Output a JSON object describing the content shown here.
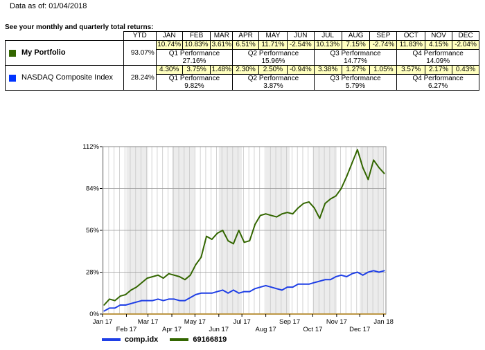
{
  "header": {
    "as_of": "Data as of: 01/04/2018",
    "intro": "See your monthly and quarterly total returns:"
  },
  "table": {
    "headers": [
      "YTD",
      "JAN",
      "FEB",
      "MAR",
      "APR",
      "MAY",
      "JUN",
      "JUL",
      "AUG",
      "SEP",
      "OCT",
      "NOV",
      "DEC"
    ],
    "rows": [
      {
        "name": "My Portfolio",
        "color": "#336600",
        "ytd": "93.07%",
        "months": [
          "10.74%",
          "10.83%",
          "3.61%",
          "6.51%",
          "11.71%",
          "-2.54%",
          "10.13%",
          "7.15%",
          "-2.74%",
          "11.83%",
          "4.15%",
          "-2.04%"
        ],
        "quarters": [
          {
            "label": "Q1 Performance",
            "value": "27.16%"
          },
          {
            "label": "Q2 Performance",
            "value": "15.96%"
          },
          {
            "label": "Q3 Performance",
            "value": "14.77%"
          },
          {
            "label": "Q4 Performance",
            "value": "14.09%"
          }
        ]
      },
      {
        "name": "NASDAQ Composite Index",
        "color": "#0033ff",
        "ytd": "28.24%",
        "months": [
          "4.30%",
          "3.75%",
          "1.48%",
          "2.30%",
          "2.50%",
          "-0.94%",
          "3.38%",
          "1.27%",
          "1.05%",
          "3.57%",
          "2.17%",
          "0.43%"
        ],
        "quarters": [
          {
            "label": "Q1 Performance",
            "value": "9.82%"
          },
          {
            "label": "Q2 Performance",
            "value": "3.87%"
          },
          {
            "label": "Q3 Performance",
            "value": "5.79%"
          },
          {
            "label": "Q4 Performance",
            "value": "6.27%"
          }
        ]
      }
    ]
  },
  "chart_data": {
    "type": "line",
    "y_ticks": [
      "0%",
      "28%",
      "56%",
      "84%",
      "112%"
    ],
    "ylim": [
      0,
      112
    ],
    "x_ticks_upper": [
      "Jan 17",
      "Mar 17",
      "May 17",
      "Jul 17",
      "Sep 17",
      "Nov 17",
      "Jan 18"
    ],
    "x_ticks_lower": [
      "Feb 17",
      "Apr 17",
      "Jun 17",
      "Aug 17",
      "Oct 17",
      "Dec 17"
    ],
    "grid": true,
    "legend_position": "bottom-left",
    "series": [
      {
        "name": "comp.idx",
        "color": "#1f3fe6",
        "points": [
          [
            "2017-01-03",
            2
          ],
          [
            "2017-01-10",
            4
          ],
          [
            "2017-01-17",
            4
          ],
          [
            "2017-01-24",
            6
          ],
          [
            "2017-01-31",
            6
          ],
          [
            "2017-02-07",
            7
          ],
          [
            "2017-02-14",
            8
          ],
          [
            "2017-02-21",
            9
          ],
          [
            "2017-02-28",
            9
          ],
          [
            "2017-03-07",
            9
          ],
          [
            "2017-03-14",
            10
          ],
          [
            "2017-03-21",
            9
          ],
          [
            "2017-03-28",
            10
          ],
          [
            "2017-04-04",
            10
          ],
          [
            "2017-04-11",
            9
          ],
          [
            "2017-04-18",
            9
          ],
          [
            "2017-04-25",
            11
          ],
          [
            "2017-05-02",
            13
          ],
          [
            "2017-05-09",
            14
          ],
          [
            "2017-05-16",
            14
          ],
          [
            "2017-05-23",
            14
          ],
          [
            "2017-05-30",
            15
          ],
          [
            "2017-06-06",
            16
          ],
          [
            "2017-06-13",
            14
          ],
          [
            "2017-06-20",
            16
          ],
          [
            "2017-06-27",
            14
          ],
          [
            "2017-07-04",
            15
          ],
          [
            "2017-07-11",
            15
          ],
          [
            "2017-07-18",
            17
          ],
          [
            "2017-07-25",
            18
          ],
          [
            "2017-08-01",
            19
          ],
          [
            "2017-08-08",
            18
          ],
          [
            "2017-08-15",
            17
          ],
          [
            "2017-08-22",
            16
          ],
          [
            "2017-08-29",
            18
          ],
          [
            "2017-09-05",
            18
          ],
          [
            "2017-09-12",
            20
          ],
          [
            "2017-09-19",
            20
          ],
          [
            "2017-09-26",
            20
          ],
          [
            "2017-10-03",
            21
          ],
          [
            "2017-10-10",
            22
          ],
          [
            "2017-10-17",
            23
          ],
          [
            "2017-10-24",
            23
          ],
          [
            "2017-10-31",
            25
          ],
          [
            "2017-11-07",
            26
          ],
          [
            "2017-11-14",
            25
          ],
          [
            "2017-11-21",
            27
          ],
          [
            "2017-11-28",
            28
          ],
          [
            "2017-12-05",
            26
          ],
          [
            "2017-12-12",
            28
          ],
          [
            "2017-12-19",
            29
          ],
          [
            "2017-12-26",
            28
          ],
          [
            "2018-01-02",
            29
          ]
        ]
      },
      {
        "name": "69166819",
        "color": "#336600",
        "points": [
          [
            "2017-01-03",
            6
          ],
          [
            "2017-01-10",
            10
          ],
          [
            "2017-01-17",
            9
          ],
          [
            "2017-01-24",
            12
          ],
          [
            "2017-01-31",
            13
          ],
          [
            "2017-02-07",
            16
          ],
          [
            "2017-02-14",
            18
          ],
          [
            "2017-02-21",
            21
          ],
          [
            "2017-02-28",
            24
          ],
          [
            "2017-03-07",
            25
          ],
          [
            "2017-03-14",
            26
          ],
          [
            "2017-03-21",
            24
          ],
          [
            "2017-03-28",
            27
          ],
          [
            "2017-04-04",
            26
          ],
          [
            "2017-04-11",
            25
          ],
          [
            "2017-04-18",
            23
          ],
          [
            "2017-04-25",
            26
          ],
          [
            "2017-05-02",
            33
          ],
          [
            "2017-05-09",
            38
          ],
          [
            "2017-05-16",
            52
          ],
          [
            "2017-05-23",
            50
          ],
          [
            "2017-05-30",
            54
          ],
          [
            "2017-06-06",
            56
          ],
          [
            "2017-06-13",
            49
          ],
          [
            "2017-06-20",
            47
          ],
          [
            "2017-06-27",
            56
          ],
          [
            "2017-07-04",
            48
          ],
          [
            "2017-07-11",
            49
          ],
          [
            "2017-07-18",
            60
          ],
          [
            "2017-07-25",
            66
          ],
          [
            "2017-08-01",
            67
          ],
          [
            "2017-08-08",
            66
          ],
          [
            "2017-08-15",
            65
          ],
          [
            "2017-08-22",
            67
          ],
          [
            "2017-08-29",
            68
          ],
          [
            "2017-09-05",
            67
          ],
          [
            "2017-09-12",
            71
          ],
          [
            "2017-09-19",
            74
          ],
          [
            "2017-09-26",
            75
          ],
          [
            "2017-10-03",
            71
          ],
          [
            "2017-10-10",
            64
          ],
          [
            "2017-10-17",
            74
          ],
          [
            "2017-10-24",
            77
          ],
          [
            "2017-10-31",
            79
          ],
          [
            "2017-11-07",
            84
          ],
          [
            "2017-11-14",
            92
          ],
          [
            "2017-11-21",
            101
          ],
          [
            "2017-11-28",
            110
          ],
          [
            "2017-12-05",
            98
          ],
          [
            "2017-12-12",
            90
          ],
          [
            "2017-12-19",
            103
          ],
          [
            "2017-12-26",
            98
          ],
          [
            "2018-01-02",
            94
          ]
        ]
      }
    ]
  },
  "legend": {
    "items": [
      {
        "label": "comp.idx",
        "color": "#1f3fe6"
      },
      {
        "label": "69166819",
        "color": "#336600"
      }
    ]
  }
}
